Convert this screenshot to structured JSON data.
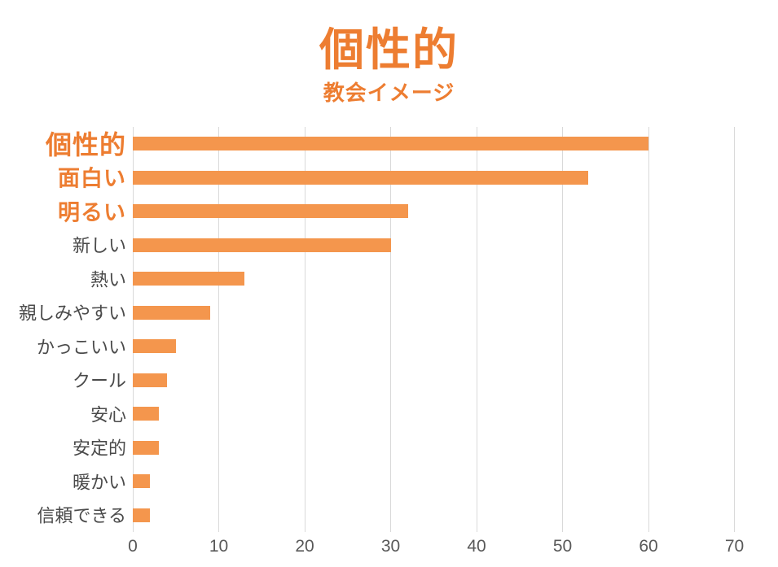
{
  "header": {
    "title": "個性的",
    "subtitle": "教会イメージ"
  },
  "chart_data": {
    "type": "bar",
    "orientation": "horizontal",
    "title": "個性的",
    "subtitle": "教会イメージ",
    "categories": [
      "個性的",
      "面白い",
      "明るい",
      "新しい",
      "熱い",
      "親しみやすい",
      "かっこいい",
      "クール",
      "安心",
      "安定的",
      "暖かい",
      "信頼できる"
    ],
    "values": [
      60,
      53,
      32,
      30,
      13,
      9,
      5,
      4,
      3,
      3,
      2,
      2
    ],
    "label_emphasis_tiers": [
      2,
      1,
      1,
      0,
      0,
      0,
      0,
      0,
      0,
      0,
      0,
      0
    ],
    "xlabel": "",
    "ylabel": "",
    "xlim": [
      0,
      70
    ],
    "x_ticks": [
      0,
      10,
      20,
      30,
      40,
      50,
      60,
      70
    ],
    "grid": true,
    "legend": false,
    "colors": {
      "bar": "#F4964D",
      "emphasis_text": "#ED7D31",
      "category_text": "#4A4A4A",
      "axis_text": "#595959",
      "gridline": "#D9D9D9",
      "background": "#FFFFFF"
    }
  }
}
